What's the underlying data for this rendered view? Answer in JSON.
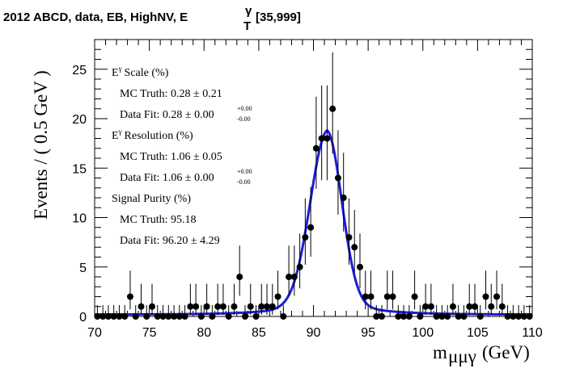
{
  "chart_data": {
    "type": "scatter",
    "title": "2012 ABCD, data, EB, HighNV, E",
    "title_superscript": "γ",
    "title_subscript": "T",
    "title_suffix": "[35,999]",
    "xlabel": "m",
    "xlabel_subscript": "μμγ",
    "xlabel_unit": "(GeV)",
    "ylabel": "Events / ( 0.5 GeV )",
    "xlim": [
      70,
      110
    ],
    "ylim": [
      0,
      28
    ],
    "x_ticks": [
      70,
      75,
      80,
      85,
      90,
      95,
      100,
      105,
      110
    ],
    "y_ticks": [
      0,
      5,
      10,
      15,
      20,
      25
    ],
    "bin_width": 0.5,
    "series": [
      {
        "name": "data",
        "marker": "circle",
        "color": "#000000",
        "x": [
          70.25,
          70.75,
          71.25,
          71.75,
          72.25,
          72.75,
          73.25,
          73.75,
          74.25,
          74.75,
          75.25,
          75.75,
          76.25,
          76.75,
          77.25,
          77.75,
          78.25,
          78.75,
          79.25,
          79.75,
          80.25,
          80.75,
          81.25,
          81.75,
          82.25,
          82.75,
          83.25,
          83.75,
          84.25,
          84.75,
          85.25,
          85.75,
          86.25,
          86.75,
          87.25,
          87.75,
          88.25,
          88.75,
          89.25,
          89.75,
          90.25,
          90.75,
          91.25,
          91.75,
          92.25,
          92.75,
          93.25,
          93.75,
          94.25,
          94.75,
          95.25,
          95.75,
          96.25,
          96.75,
          97.25,
          97.75,
          98.25,
          98.75,
          99.25,
          99.75,
          100.25,
          100.75,
          101.25,
          101.75,
          102.25,
          102.75,
          103.25,
          103.75,
          104.25,
          104.75,
          105.25,
          105.75,
          106.25,
          106.75,
          107.25,
          107.75,
          108.25,
          108.75,
          109.25,
          109.75
        ],
        "y": [
          0,
          0,
          0,
          0,
          0,
          0,
          2,
          0,
          1,
          0,
          1,
          0,
          0,
          0,
          0,
          0,
          0,
          1,
          1,
          0,
          1,
          0,
          1,
          1,
          0,
          1,
          4,
          0,
          1,
          0,
          1,
          1,
          1,
          2,
          0,
          4,
          4,
          5,
          8,
          9,
          17,
          18,
          18,
          21,
          14,
          12,
          8,
          7,
          5,
          2,
          2,
          0,
          0,
          2,
          2,
          0,
          0,
          0,
          2,
          0,
          1,
          1,
          0,
          0,
          0,
          1,
          0,
          0,
          1,
          1,
          0,
          2,
          1,
          2,
          1,
          0,
          0,
          0,
          0,
          0
        ],
        "err_high": [
          1.15,
          1.15,
          1.15,
          1.15,
          1.15,
          1.15,
          2.63,
          1.15,
          2.3,
          1.15,
          2.3,
          1.15,
          1.15,
          1.15,
          1.15,
          1.15,
          1.15,
          2.3,
          2.3,
          1.15,
          2.3,
          1.15,
          2.3,
          2.3,
          1.15,
          2.3,
          3.16,
          1.15,
          2.3,
          1.15,
          2.3,
          2.3,
          2.3,
          2.63,
          1.15,
          3.16,
          3.16,
          3.38,
          3.94,
          4.11,
          5.22,
          5.36,
          5.36,
          5.71,
          4.83,
          4.55,
          3.94,
          3.77,
          3.38,
          2.63,
          2.63,
          1.15,
          1.15,
          2.63,
          2.63,
          1.15,
          1.15,
          1.15,
          2.63,
          1.15,
          2.3,
          2.3,
          1.15,
          1.15,
          1.15,
          2.3,
          1.15,
          1.15,
          2.3,
          2.3,
          1.15,
          2.63,
          2.3,
          2.63,
          2.3,
          1.15,
          1.15,
          1.15,
          1.15,
          1.15
        ],
        "err_low": [
          0,
          0,
          0,
          0,
          0,
          0,
          1.29,
          0,
          0.83,
          0,
          0.83,
          0,
          0,
          0,
          0,
          0,
          0,
          0.83,
          0.83,
          0,
          0.83,
          0,
          0.83,
          0.83,
          0,
          0.83,
          1.91,
          0,
          0.83,
          0,
          0.83,
          0.83,
          0.83,
          1.29,
          0,
          1.91,
          1.91,
          2.16,
          2.77,
          2.96,
          4.1,
          4.22,
          4.22,
          4.55,
          3.7,
          3.41,
          2.77,
          2.58,
          2.16,
          1.29,
          1.29,
          0,
          0,
          1.29,
          1.29,
          0,
          0,
          0,
          1.29,
          0,
          0.83,
          0.83,
          0,
          0,
          0,
          0.83,
          0,
          0,
          0.83,
          0.83,
          0,
          1.29,
          0.83,
          1.29,
          0.83,
          0,
          0,
          0,
          0,
          0
        ]
      },
      {
        "name": "fit",
        "type": "line",
        "color": "#1c1cd8",
        "peak_x": 91.25,
        "peak_y": 18.8,
        "sigma_left": 1.55,
        "sigma_right": 1.35,
        "tail_width": 3.3,
        "tail_fraction": 0.1,
        "background": 0.2
      }
    ],
    "legend": {
      "placement": "top-left",
      "items": [
        {
          "heading": "E",
          "heading_sup": "γ",
          "heading_rest": "Scale (%)"
        },
        {
          "label": "MC Truth: 0.28 ± 0.21"
        },
        {
          "label": "Data Fit: 0.28 ± 0.00",
          "sup": "+0.00",
          "sub": "-0.00"
        },
        {
          "heading": "E",
          "heading_sup": "γ",
          "heading_rest": "Resolution (%)"
        },
        {
          "label": "MC Truth: 1.06 ± 0.05"
        },
        {
          "label": "Data Fit: 1.06 ± 0.00",
          "sup": "+0.00",
          "sub": "-0.00"
        },
        {
          "heading": "Signal Purity (%)"
        },
        {
          "label": "MC Truth: 95.18"
        },
        {
          "label": "Data Fit: 96.20 ± 4.29"
        }
      ]
    }
  }
}
